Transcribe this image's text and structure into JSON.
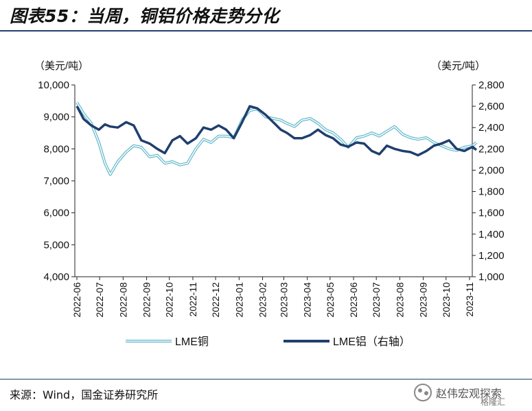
{
  "title": "图表55：当周，铜铝价格走势分化",
  "source": "来源：Wind，国金证券研究所",
  "watermark": {
    "name": "赵伟宏观探索",
    "sub": "格隆汇"
  },
  "chart_data": {
    "type": "line",
    "y_left_unit": "（美元/吨）",
    "y_right_unit": "（美元/吨）",
    "y_left_range": [
      4000,
      10000
    ],
    "y_right_range": [
      1000,
      2800
    ],
    "y_left_ticks": [
      "10,000",
      "9,000",
      "8,000",
      "7,000",
      "6,000",
      "5,000",
      "4,000"
    ],
    "y_right_ticks": [
      "2,800",
      "2,600",
      "2,400",
      "2,200",
      "2,000",
      "1,800",
      "1,600",
      "1,400",
      "1,200",
      "1,000"
    ],
    "x_ticks": [
      "2022-06",
      "2022-07",
      "2022-08",
      "2022-09",
      "2022-10",
      "2022-11",
      "2022-12",
      "2023-01",
      "2023-02",
      "2023-03",
      "2023-04",
      "2023-05",
      "2023-06",
      "2023-07",
      "2023-08",
      "2023-09",
      "2023-10",
      "2023-11"
    ],
    "series": [
      {
        "name": "LME铜",
        "axis": "left",
        "color": "#5fb7c9",
        "x": [
          "2022-06-01",
          "2022-06-10",
          "2022-06-20",
          "2022-06-30",
          "2022-07-08",
          "2022-07-15",
          "2022-07-25",
          "2022-08-05",
          "2022-08-15",
          "2022-08-25",
          "2022-09-05",
          "2022-09-15",
          "2022-09-25",
          "2022-10-05",
          "2022-10-15",
          "2022-10-25",
          "2022-11-05",
          "2022-11-15",
          "2022-11-25",
          "2022-12-05",
          "2022-12-15",
          "2022-12-25",
          "2023-01-05",
          "2023-01-15",
          "2023-01-25",
          "2023-02-05",
          "2023-02-15",
          "2023-02-25",
          "2023-03-05",
          "2023-03-15",
          "2023-03-25",
          "2023-04-05",
          "2023-04-15",
          "2023-04-25",
          "2023-05-05",
          "2023-05-15",
          "2023-05-25",
          "2023-06-05",
          "2023-06-15",
          "2023-06-25",
          "2023-07-05",
          "2023-07-15",
          "2023-07-25",
          "2023-08-05",
          "2023-08-15",
          "2023-08-25",
          "2023-09-05",
          "2023-09-15",
          "2023-09-25",
          "2023-10-05",
          "2023-10-15",
          "2023-10-25",
          "2023-11-05",
          "2023-11-10"
        ],
        "values": [
          9450,
          9100,
          8800,
          8200,
          7550,
          7200,
          7600,
          7900,
          8100,
          8050,
          7750,
          7800,
          7550,
          7600,
          7500,
          7550,
          8000,
          8300,
          8200,
          8400,
          8400,
          8350,
          8900,
          9200,
          9250,
          9000,
          8950,
          8900,
          8800,
          8700,
          8900,
          8950,
          8800,
          8600,
          8500,
          8300,
          8050,
          8350,
          8400,
          8500,
          8400,
          8550,
          8700,
          8450,
          8350,
          8300,
          8350,
          8200,
          8100,
          8000,
          7950,
          8050,
          8100,
          8200
        ]
      },
      {
        "name": "LME铝（右轴）",
        "axis": "right",
        "color": "#1f3f6e",
        "x": [
          "2022-06-01",
          "2022-06-10",
          "2022-06-20",
          "2022-06-30",
          "2022-07-08",
          "2022-07-15",
          "2022-07-25",
          "2022-08-05",
          "2022-08-15",
          "2022-08-25",
          "2022-09-05",
          "2022-09-15",
          "2022-09-25",
          "2022-10-05",
          "2022-10-15",
          "2022-10-25",
          "2022-11-05",
          "2022-11-15",
          "2022-11-25",
          "2022-12-05",
          "2022-12-15",
          "2022-12-25",
          "2023-01-05",
          "2023-01-15",
          "2023-01-25",
          "2023-02-05",
          "2023-02-15",
          "2023-02-25",
          "2023-03-05",
          "2023-03-15",
          "2023-03-25",
          "2023-04-05",
          "2023-04-15",
          "2023-04-25",
          "2023-05-05",
          "2023-05-15",
          "2023-05-25",
          "2023-06-05",
          "2023-06-15",
          "2023-06-25",
          "2023-07-05",
          "2023-07-15",
          "2023-07-25",
          "2023-08-05",
          "2023-08-15",
          "2023-08-25",
          "2023-09-05",
          "2023-09-15",
          "2023-09-25",
          "2023-10-05",
          "2023-10-15",
          "2023-10-25",
          "2023-11-05",
          "2023-11-10"
        ],
        "values": [
          2600,
          2480,
          2420,
          2380,
          2430,
          2410,
          2400,
          2450,
          2420,
          2280,
          2250,
          2200,
          2160,
          2280,
          2320,
          2250,
          2300,
          2400,
          2380,
          2420,
          2380,
          2300,
          2450,
          2600,
          2580,
          2520,
          2450,
          2380,
          2350,
          2300,
          2300,
          2330,
          2380,
          2330,
          2300,
          2240,
          2220,
          2260,
          2250,
          2180,
          2150,
          2230,
          2200,
          2180,
          2170,
          2140,
          2180,
          2230,
          2250,
          2280,
          2200,
          2180,
          2220,
          2190
        ]
      }
    ]
  }
}
